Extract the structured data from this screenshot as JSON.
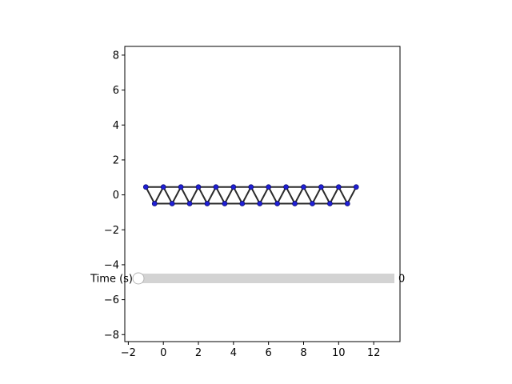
{
  "chart_data": {
    "type": "scatter",
    "title": "",
    "xlabel": "",
    "ylabel": "",
    "xlim": [
      -2.2,
      13.5
    ],
    "ylim": [
      -8.4,
      8.5
    ],
    "xticks": [
      -2,
      0,
      2,
      4,
      6,
      8,
      10,
      12
    ],
    "yticks": [
      -8,
      -6,
      -4,
      -2,
      0,
      2,
      4,
      6,
      8
    ],
    "xtick_labels": [
      "−2",
      "0",
      "2",
      "4",
      "6",
      "8",
      "10",
      "12"
    ],
    "ytick_labels": [
      "−8",
      "−6",
      "−4",
      "−2",
      "0",
      "2",
      "4",
      "6",
      "8"
    ],
    "grid": false,
    "nodes": {
      "top": {
        "x": [
          -1,
          0,
          1,
          2,
          3,
          4,
          5,
          6,
          7,
          8,
          9,
          10,
          11
        ],
        "y": 0.45
      },
      "bottom": {
        "x": [
          -0.5,
          0.5,
          1.5,
          2.5,
          3.5,
          4.5,
          5.5,
          6.5,
          7.5,
          8.5,
          9.5,
          10.5
        ],
        "y": -0.5
      }
    },
    "node_color": "#1f1fd6",
    "member_color": "#2b2b2b"
  },
  "slider": {
    "label": "Time (s)",
    "value_text": "0",
    "value": 0,
    "track_color": "#d3d3d3"
  }
}
